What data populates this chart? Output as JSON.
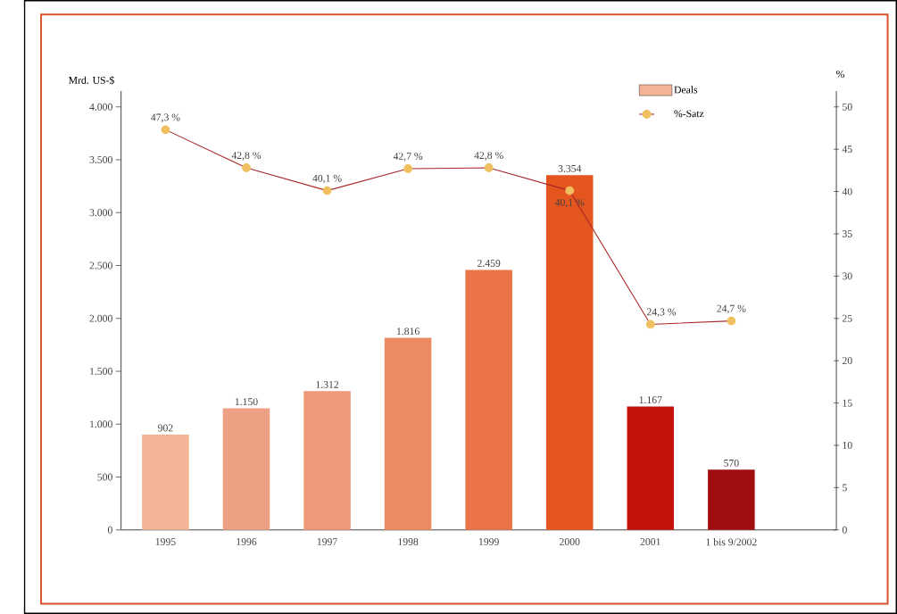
{
  "chart_data": {
    "type": "bar",
    "ylabel": "Mrd. US-$",
    "y2label": "%",
    "categories": [
      "1995",
      "1996",
      "1997",
      "1998",
      "1999",
      "2000",
      "2001",
      "1 bis 9/2002"
    ],
    "series": [
      {
        "name": "Deals",
        "colors": [
          "#f2b494",
          "#eea084",
          "#ec9a7a",
          "#ec8a62",
          "#ea7448",
          "#e5561e",
          "#c4120c",
          "#a10e10"
        ],
        "values": [
          902,
          1150,
          1312,
          1816,
          2459,
          3354,
          1167,
          570
        ],
        "value_labels": [
          "902",
          "1.150",
          "1.312",
          "1.816",
          "2.459",
          "3.354",
          "1.167",
          "570"
        ]
      },
      {
        "name": "%-Satz",
        "type": "line",
        "axis": "y2",
        "color": "#a8282a",
        "marker": "circle",
        "line_style": "solid",
        "values": [
          47.3,
          42.8,
          40.1,
          42.7,
          42.8,
          40.1,
          24.3,
          24.7
        ],
        "value_labels": [
          "47,3 %",
          "42,8 %",
          "40,1 %",
          "42,7 %",
          "42,8 %",
          "40,1 %",
          "24,3 %",
          "24,7 %"
        ]
      }
    ],
    "ylim": [
      0,
      4150
    ],
    "yticks": [
      0,
      500,
      {
        "value": 1000,
        "label": "1.000"
      },
      {
        "value": 1500,
        "label": "1.500"
      },
      {
        "value": 2000,
        "label": "2.000"
      },
      {
        "value": 2500,
        "label": "2.500"
      },
      {
        "value": 3000,
        "label": "3.000"
      },
      {
        "value": 3500,
        "label": "3.500"
      },
      {
        "value": 4000,
        "label": "4.000"
      }
    ],
    "y2lim": [
      0,
      51.875
    ],
    "y2ticks": [
      0,
      5,
      10,
      15,
      20,
      25,
      30,
      35,
      40,
      45,
      50
    ],
    "legend": "top right",
    "grid": false
  }
}
